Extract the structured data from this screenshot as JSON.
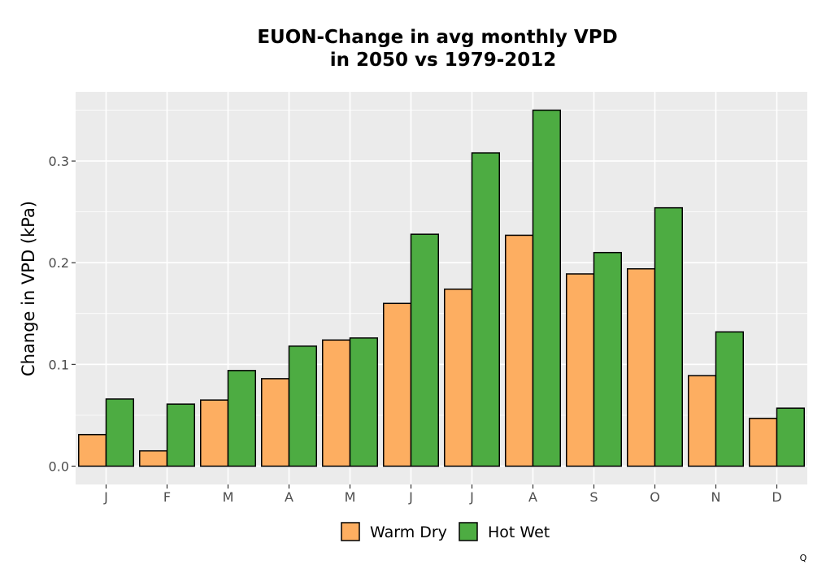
{
  "chart_data": {
    "type": "bar",
    "title_lines": [
      "EUON-Change in avg monthly VPD",
      "in 2050 vs 1979-2012"
    ],
    "xlabel": "",
    "ylabel": "Change in VPD (kPa)",
    "categories": [
      "J",
      "F",
      "M",
      "A",
      "M",
      "J",
      "J",
      "A",
      "S",
      "O",
      "N",
      "D"
    ],
    "series": [
      {
        "name": "Warm Dry",
        "color": "#FDAE61",
        "values": [
          0.031,
          0.015,
          0.065,
          0.086,
          0.124,
          0.16,
          0.174,
          0.227,
          0.189,
          0.194,
          0.089,
          0.047
        ]
      },
      {
        "name": "Hot Wet",
        "color": "#4DAC42",
        "values": [
          0.066,
          0.061,
          0.094,
          0.118,
          0.126,
          0.228,
          0.308,
          0.35,
          0.21,
          0.254,
          0.132,
          0.057
        ]
      }
    ],
    "ylim": [
      -0.018,
      0.368
    ],
    "yticks": [
      0.0,
      0.1,
      0.2,
      0.3
    ],
    "ytick_labels": [
      "0.0",
      "0.1",
      "0.2",
      "0.3"
    ],
    "grid": true,
    "legend_position": "bottom",
    "panel_color": "#EBEBEB",
    "gridline_color": "#FFFFFF",
    "bar_outline_color": "#000000"
  },
  "corner_mark": "Q"
}
